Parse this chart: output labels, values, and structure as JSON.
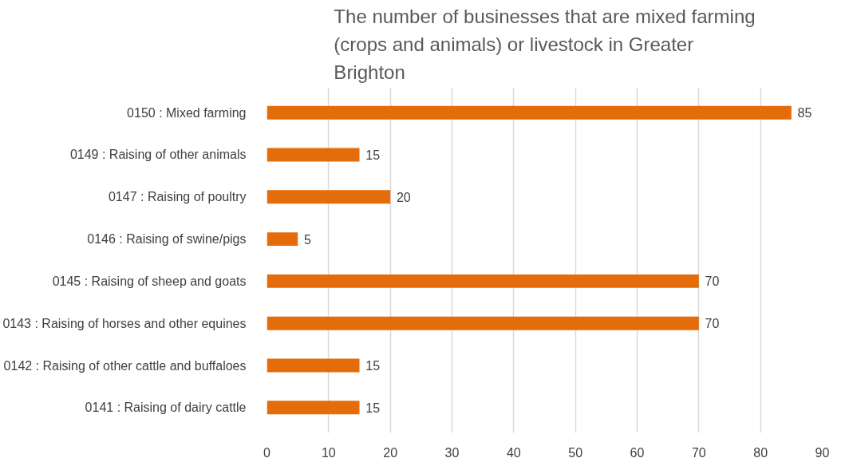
{
  "chart_data": {
    "type": "bar",
    "orientation": "horizontal",
    "title": "The number of businesses that are mixed farming (crops and animals) or livestock in Greater Brighton",
    "categories": [
      "0150 : Mixed farming",
      "0149 : Raising of other animals",
      "0147 : Raising of poultry",
      "0146 : Raising of swine/pigs",
      "0145 : Raising of sheep and goats",
      "0143 : Raising of horses and other equines",
      "0142 : Raising of other cattle and buffaloes",
      "0141 : Raising of dairy cattle"
    ],
    "values": [
      85,
      15,
      20,
      5,
      70,
      70,
      15,
      15
    ],
    "color": "#e46c0a",
    "xlim": [
      0,
      90
    ],
    "xticks": [
      0,
      10,
      20,
      30,
      40,
      50,
      60,
      70,
      80,
      90
    ],
    "grid": "x",
    "data_labels": true
  }
}
